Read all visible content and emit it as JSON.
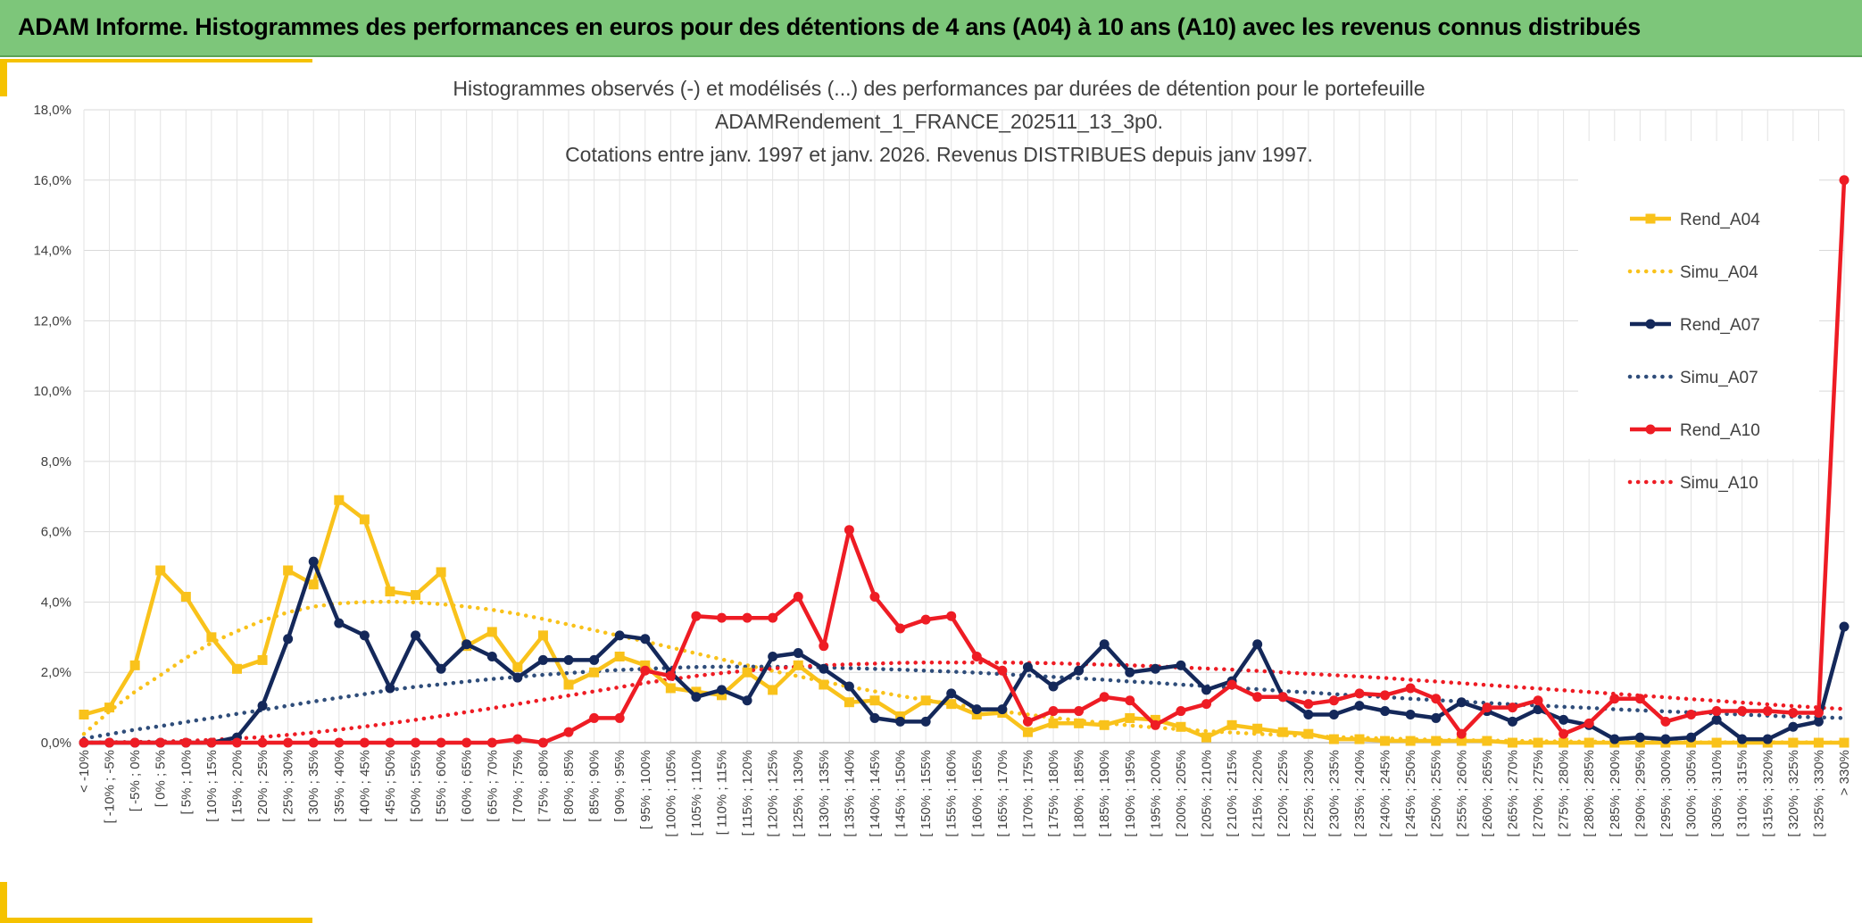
{
  "banner": {
    "title": "ADAM Informe. Histogrammes des performances en euros pour des détentions de 4 ans (A04) à 10 ans (A10) avec les revenus connus distribués"
  },
  "colors": {
    "banner": "#7dc67a",
    "accent": "#f5c200",
    "A04": "#f9c21b",
    "A07": "#14285a",
    "A07_simu": "#2f4d7a",
    "A10": "#ee1c24"
  },
  "chart_data": {
    "type": "line",
    "title_lines": [
      "Histogrammes observés (-) et modélisés (...) des performances par durées de détention pour le portefeuille",
      "ADAMRendement_1_FRANCE_202511_13_3p0.",
      "Cotations entre janv. 1997 et janv. 2026. Revenus DISTRIBUES depuis janv 1997."
    ],
    "xlabel": "",
    "ylabel": "",
    "ylim": [
      0,
      18
    ],
    "yticks": [
      "0,0%",
      "2,0%",
      "4,0%",
      "6,0%",
      "8,0%",
      "10,0%",
      "12,0%",
      "14,0%",
      "16,0%",
      "18,0%"
    ],
    "ytick_values": [
      0,
      2,
      4,
      6,
      8,
      10,
      12,
      14,
      16,
      18
    ],
    "grid": true,
    "legend_position": "right",
    "categories": [
      "< -10%",
      "[ -10% ; -5%",
      "[ -5% ; 0%",
      "[ 0% ; 5%",
      "[ 5% ; 10%",
      "[ 10% ; 15%",
      "[ 15% ; 20%",
      "[ 20% ; 25%",
      "[ 25% ; 30%",
      "[ 30% ; 35%",
      "[ 35% ; 40%",
      "[ 40% ; 45%",
      "[ 45% ; 50%",
      "[ 50% ; 55%",
      "[ 55% ; 60%",
      "[ 60% ; 65%",
      "[ 65% ; 70%",
      "[ 70% ; 75%",
      "[ 75% ; 80%",
      "[ 80% ; 85%",
      "[ 85% ; 90%",
      "[ 90% ; 95%",
      "[ 95% ; 100%",
      "[ 100% ; 105%",
      "[ 105% ; 110%",
      "[ 110% ; 115%",
      "[ 115% ; 120%",
      "[ 120% ; 125%",
      "[ 125% ; 130%",
      "[ 130% ; 135%",
      "[ 135% ; 140%",
      "[ 140% ; 145%",
      "[ 145% ; 150%",
      "[ 150% ; 155%",
      "[ 155% ; 160%",
      "[ 160% ; 165%",
      "[ 165% ; 170%",
      "[ 170% ; 175%",
      "[ 175% ; 180%",
      "[ 180% ; 185%",
      "[ 185% ; 190%",
      "[ 190% ; 195%",
      "[ 195% ; 200%",
      "[ 200% ; 205%",
      "[ 205% ; 210%",
      "[ 210% ; 215%",
      "[ 215% ; 220%",
      "[ 220% ; 225%",
      "[ 225% ; 230%",
      "[ 230% ; 235%",
      "[ 235% ; 240%",
      "[ 240% ; 245%",
      "[ 245% ; 250%",
      "[ 250% ; 255%",
      "[ 255% ; 260%",
      "[ 260% ; 265%",
      "[ 265% ; 270%",
      "[ 270% ; 275%",
      "[ 275% ; 280%",
      "[ 280% ; 285%",
      "[ 285% ; 290%",
      "[ 290% ; 295%",
      "[ 295% ; 300%",
      "[ 300% ; 305%",
      "[ 305% ; 310%",
      "[ 310% ; 315%",
      "[ 315% ; 320%",
      "[ 320% ; 325%",
      "[ 325% ; 330%",
      "> 330%"
    ],
    "series": [
      {
        "name": "Rend_A04",
        "style": "solid",
        "marker": "square",
        "color": "#f9c21b",
        "values": [
          0.8,
          1.0,
          2.2,
          4.9,
          4.15,
          3.0,
          2.1,
          2.35,
          4.9,
          4.5,
          6.9,
          6.35,
          4.3,
          4.2,
          4.85,
          2.75,
          3.15,
          2.15,
          3.05,
          1.65,
          2.0,
          2.45,
          2.2,
          1.55,
          1.45,
          1.35,
          2.0,
          1.5,
          2.2,
          1.65,
          1.15,
          1.2,
          0.75,
          1.2,
          1.1,
          0.8,
          0.85,
          0.3,
          0.55,
          0.55,
          0.5,
          0.7,
          0.65,
          0.45,
          0.15,
          0.5,
          0.4,
          0.3,
          0.25,
          0.1,
          0.1,
          0.05,
          0.05,
          0.05,
          0.05,
          0.05,
          0.0,
          0.0,
          0.0,
          0.0,
          0.0,
          0.0,
          0.0,
          0.0,
          0.0,
          0.0,
          0.0,
          0.0,
          0.0,
          0.0
        ]
      },
      {
        "name": "Simu_A04",
        "style": "dotted",
        "color": "#f9c21b",
        "values": [
          0.25,
          0.89,
          1.45,
          1.92,
          2.41,
          2.84,
          3.17,
          3.47,
          3.71,
          3.87,
          3.96,
          4.0,
          4.01,
          3.99,
          3.94,
          3.87,
          3.78,
          3.66,
          3.52,
          3.36,
          3.2,
          3.04,
          2.88,
          2.71,
          2.54,
          2.37,
          2.2,
          2.04,
          1.89,
          1.74,
          1.59,
          1.46,
          1.33,
          1.21,
          1.1,
          0.99,
          0.89,
          0.8,
          0.71,
          0.63,
          0.56,
          0.49,
          0.43,
          0.38,
          0.33,
          0.29,
          0.25,
          0.22,
          0.19,
          0.16,
          0.14,
          0.12,
          0.1,
          0.08,
          0.07,
          0.06,
          0.05,
          0.04,
          0.03,
          0.03,
          0.02,
          0.02,
          0.02,
          0.01,
          0.01,
          0.01,
          0.01,
          0.01,
          0.01,
          0.0
        ]
      },
      {
        "name": "Rend_A07",
        "style": "solid",
        "marker": "circle",
        "color": "#14285a",
        "values": [
          0.0,
          0.0,
          0.0,
          0.0,
          0.0,
          0.0,
          0.15,
          1.05,
          2.95,
          5.15,
          3.4,
          3.05,
          1.55,
          3.05,
          2.1,
          2.8,
          2.45,
          1.85,
          2.35,
          2.35,
          2.35,
          3.05,
          2.95,
          2.0,
          1.3,
          1.5,
          1.2,
          2.45,
          2.55,
          2.1,
          1.6,
          0.7,
          0.6,
          0.6,
          1.4,
          0.95,
          0.95,
          2.15,
          1.6,
          2.05,
          2.8,
          2.0,
          2.1,
          2.2,
          1.5,
          1.75,
          2.8,
          1.3,
          0.8,
          0.8,
          1.05,
          0.9,
          0.8,
          0.7,
          1.15,
          0.9,
          0.6,
          0.95,
          0.65,
          0.5,
          0.1,
          0.15,
          0.1,
          0.15,
          0.65,
          0.1,
          0.1,
          0.45,
          0.6,
          3.3
        ]
      },
      {
        "name": "Simu_A07",
        "style": "dotted",
        "color": "#2f4d7a",
        "values": [
          0.12,
          0.24,
          0.37,
          0.47,
          0.59,
          0.7,
          0.82,
          0.93,
          1.05,
          1.17,
          1.28,
          1.38,
          1.5,
          1.59,
          1.66,
          1.74,
          1.81,
          1.87,
          1.93,
          1.98,
          2.03,
          2.07,
          2.1,
          2.13,
          2.15,
          2.16,
          2.16,
          2.16,
          2.15,
          2.14,
          2.12,
          2.1,
          2.08,
          2.05,
          2.02,
          1.99,
          1.95,
          1.91,
          1.87,
          1.83,
          1.79,
          1.74,
          1.7,
          1.65,
          1.61,
          1.56,
          1.52,
          1.47,
          1.43,
          1.38,
          1.34,
          1.3,
          1.25,
          1.21,
          1.17,
          1.13,
          1.09,
          1.06,
          1.02,
          0.99,
          0.95,
          0.92,
          0.89,
          0.86,
          0.83,
          0.8,
          0.77,
          0.74,
          0.72,
          0.7
        ]
      },
      {
        "name": "Rend_A10",
        "style": "solid",
        "marker": "circle",
        "color": "#ee1c24",
        "values": [
          0.0,
          0.0,
          0.0,
          0.0,
          0.0,
          0.0,
          0.0,
          0.0,
          0.0,
          0.0,
          0.0,
          0.0,
          0.0,
          0.0,
          0.0,
          0.0,
          0.0,
          0.1,
          0.0,
          0.3,
          0.7,
          0.7,
          2.05,
          1.9,
          3.6,
          3.55,
          3.55,
          3.55,
          4.15,
          2.75,
          6.05,
          4.15,
          3.25,
          3.5,
          3.6,
          2.45,
          2.05,
          0.6,
          0.9,
          0.9,
          1.3,
          1.2,
          0.5,
          0.9,
          1.1,
          1.65,
          1.3,
          1.3,
          1.1,
          1.2,
          1.4,
          1.35,
          1.55,
          1.25,
          0.25,
          1.0,
          1.0,
          1.2,
          0.25,
          0.55,
          1.25,
          1.25,
          0.6,
          0.8,
          0.9,
          0.9,
          0.9,
          0.85,
          0.85,
          16.0
        ]
      },
      {
        "name": "Simu_A10",
        "style": "dotted",
        "color": "#ee1c24",
        "values": [
          0.0,
          0.01,
          0.02,
          0.03,
          0.05,
          0.08,
          0.12,
          0.16,
          0.22,
          0.29,
          0.37,
          0.46,
          0.55,
          0.65,
          0.76,
          0.87,
          0.98,
          1.1,
          1.22,
          1.34,
          1.46,
          1.58,
          1.7,
          1.8,
          1.9,
          1.98,
          2.05,
          2.11,
          2.16,
          2.2,
          2.23,
          2.25,
          2.27,
          2.28,
          2.28,
          2.28,
          2.28,
          2.27,
          2.26,
          2.24,
          2.22,
          2.2,
          2.17,
          2.14,
          2.11,
          2.08,
          2.04,
          2.0,
          1.96,
          1.92,
          1.88,
          1.84,
          1.79,
          1.74,
          1.69,
          1.64,
          1.59,
          1.54,
          1.49,
          1.44,
          1.39,
          1.34,
          1.29,
          1.24,
          1.19,
          1.14,
          1.09,
          1.04,
          1.0,
          0.96
        ]
      }
    ]
  }
}
